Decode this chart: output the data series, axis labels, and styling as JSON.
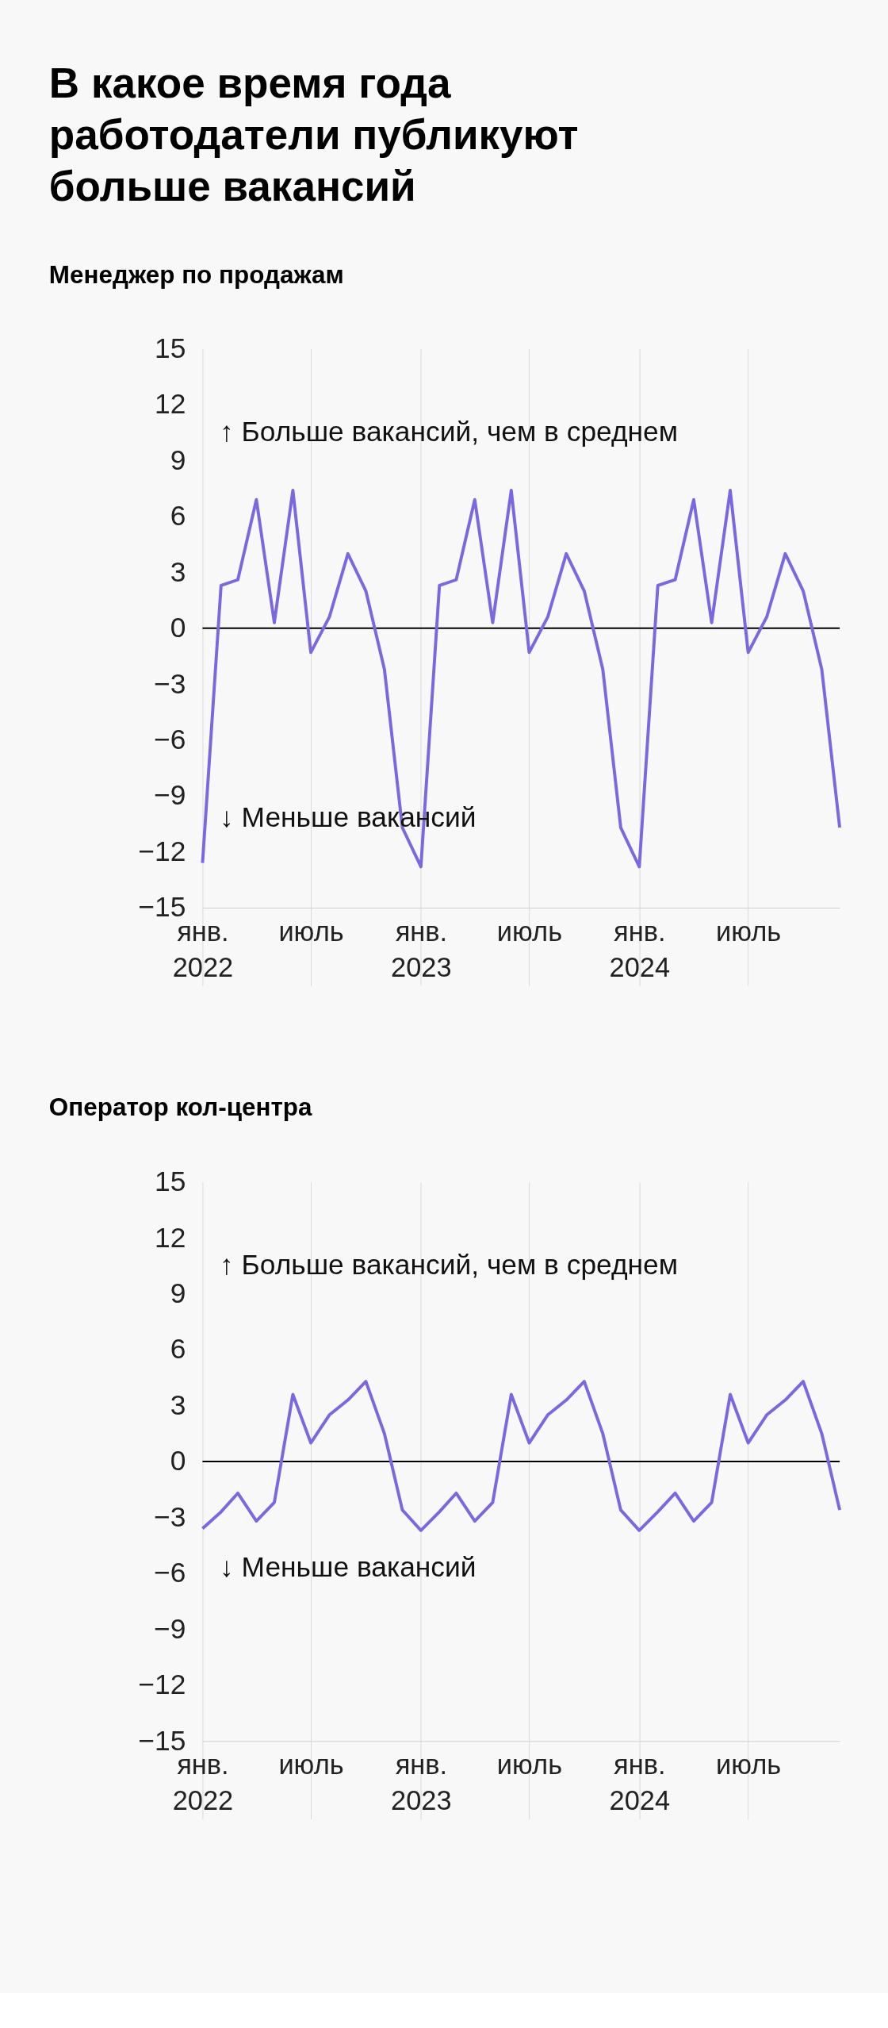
{
  "chart_data": [
    {
      "type": "line",
      "title": "В какое время года работодатели публикуют больше вакансий",
      "subtitle": "Менеджер по продажам",
      "x": [
        "2022-01",
        "2022-02",
        "2022-03",
        "2022-04",
        "2022-05",
        "2022-06",
        "2022-07",
        "2022-08",
        "2022-09",
        "2022-10",
        "2022-11",
        "2022-12",
        "2023-01",
        "2023-02",
        "2023-03",
        "2023-04",
        "2023-05",
        "2023-06",
        "2023-07",
        "2023-08",
        "2023-09",
        "2023-10",
        "2023-11",
        "2023-12",
        "2024-01",
        "2024-02",
        "2024-03",
        "2024-04",
        "2024-05",
        "2024-06",
        "2024-07",
        "2024-08",
        "2024-09",
        "2024-10",
        "2024-11",
        "2024-12"
      ],
      "series": [
        {
          "color": "#7b68e0",
          "values": [
            -12.6,
            2.3,
            2.6,
            6.9,
            0.3,
            7.4,
            -1.3,
            0.6,
            4.0,
            2.0,
            -2.2,
            -10.7,
            -12.8,
            2.3,
            2.6,
            6.9,
            0.3,
            7.4,
            -1.3,
            0.6,
            4.0,
            2.0,
            -2.2,
            -10.7,
            -12.8,
            2.3,
            2.6,
            6.9,
            0.3,
            7.4,
            -1.3,
            0.6,
            4.0,
            2.0,
            -2.2,
            -10.7
          ]
        }
      ],
      "xlim": [
        "2022-01",
        "2024-12"
      ],
      "xticks": [
        {
          "value": "2022-01",
          "label": "янв.\n2022"
        },
        {
          "value": "2022-07",
          "label": "июль"
        },
        {
          "value": "2023-01",
          "label": "янв.\n2023"
        },
        {
          "value": "2023-07",
          "label": "июль"
        },
        {
          "value": "2024-01",
          "label": "янв.\n2024"
        },
        {
          "value": "2024-07",
          "label": "июль"
        }
      ],
      "ylim": [
        -15,
        15
      ],
      "yticks": [
        -15,
        -12,
        -9,
        -6,
        -3,
        0,
        3,
        6,
        9,
        12,
        15
      ],
      "grid": "x",
      "legend": false,
      "marker": "none",
      "line_style": "solid",
      "ref_lines": [
        {
          "axis": "y",
          "value": 0,
          "color": "#000000"
        }
      ],
      "annotations": [
        "↑ Больше вакансий, чем в среднем",
        "↓ Меньше вакансий"
      ]
    },
    {
      "type": "line",
      "title": "Оператор кол-центра",
      "x": [
        "2022-01",
        "2022-02",
        "2022-03",
        "2022-04",
        "2022-05",
        "2022-06",
        "2022-07",
        "2022-08",
        "2022-09",
        "2022-10",
        "2022-11",
        "2022-12",
        "2023-01",
        "2023-02",
        "2023-03",
        "2023-04",
        "2023-05",
        "2023-06",
        "2023-07",
        "2023-08",
        "2023-09",
        "2023-10",
        "2023-11",
        "2023-12",
        "2024-01",
        "2024-02",
        "2024-03",
        "2024-04",
        "2024-05",
        "2024-06",
        "2024-07",
        "2024-08",
        "2024-09",
        "2024-10",
        "2024-11",
        "2024-12"
      ],
      "series": [
        {
          "color": "#7b68e0",
          "values": [
            -3.6,
            -2.7,
            -1.7,
            -3.2,
            -2.2,
            3.6,
            1.0,
            2.5,
            3.3,
            4.3,
            1.5,
            -2.6,
            -3.7,
            -2.7,
            -1.7,
            -3.2,
            -2.2,
            3.6,
            1.0,
            2.5,
            3.3,
            4.3,
            1.5,
            -2.6,
            -3.7,
            -2.7,
            -1.7,
            -3.2,
            -2.2,
            3.6,
            1.0,
            2.5,
            3.3,
            4.3,
            1.5,
            -2.6
          ]
        }
      ],
      "xlim": [
        "2022-01",
        "2024-12"
      ],
      "xticks": [
        {
          "value": "2022-01",
          "label": "янв.\n2022"
        },
        {
          "value": "2022-07",
          "label": "июль"
        },
        {
          "value": "2023-01",
          "label": "янв.\n2023"
        },
        {
          "value": "2023-07",
          "label": "июль"
        },
        {
          "value": "2024-01",
          "label": "янв.\n2024"
        },
        {
          "value": "2024-07",
          "label": "июль"
        }
      ],
      "ylim": [
        -15,
        15
      ],
      "yticks": [
        -15,
        -12,
        -9,
        -6,
        -3,
        0,
        3,
        6,
        9,
        12,
        15
      ],
      "grid": "x",
      "legend": false,
      "marker": "none",
      "line_style": "solid",
      "ref_lines": [
        {
          "axis": "y",
          "value": 0,
          "color": "#000000"
        }
      ],
      "annotations": [
        "↑ Больше вакансий, чем в среднем",
        "↓ Меньше вакансий"
      ]
    }
  ]
}
